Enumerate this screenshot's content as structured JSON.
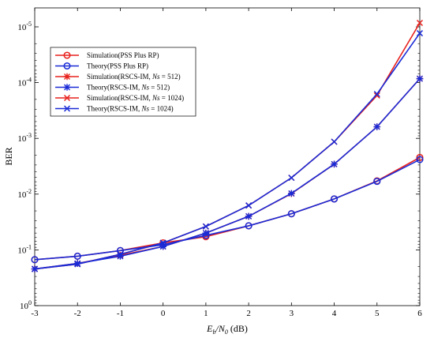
{
  "chart_data": {
    "type": "line",
    "xlabel": "E_b/N_0 (dB)",
    "xlabel_parts": {
      "main": "E",
      "sub1": "b",
      "slash": "/N",
      "sub2": "0",
      "unit": " (dB)"
    },
    "ylabel": "BER",
    "x": [
      -3,
      -2,
      -1,
      0,
      1,
      2,
      3,
      4,
      5,
      6
    ],
    "xlim": [
      -3,
      6
    ],
    "yscale": "log-inverted",
    "y_tick_exponents": [
      0,
      -1,
      -2,
      -3,
      -4,
      -5
    ],
    "y_tick_base": "10",
    "grid": false,
    "legend_placement": "top-left",
    "series": [
      {
        "name": "Simulation(PSS Plus RP)",
        "name_parts": [
          "Simulation(PSS Plus RP)"
        ],
        "color": "#e8211d",
        "marker": "circle",
        "values": [
          0.15,
          0.13,
          0.103,
          0.075,
          0.058,
          0.037,
          0.0225,
          0.0122,
          0.0058,
          0.0022
        ]
      },
      {
        "name": "Theory(PSS Plus RP)",
        "name_parts": [
          "Theory(PSS Plus RP)"
        ],
        "color": "#1a2bd6",
        "marker": "circle",
        "values": [
          0.15,
          0.13,
          0.103,
          0.081,
          0.055,
          0.037,
          0.0225,
          0.0122,
          0.0059,
          0.0024
        ]
      },
      {
        "name": "Simulation(RSCS-IM, Ns = 512)",
        "name_parts": [
          "Simulation(RSCS-IM, ",
          "Ns",
          " = 512)"
        ],
        "color": "#e8211d",
        "marker": "asterisk",
        "values": [
          0.22,
          0.175,
          0.125,
          0.087,
          0.05,
          0.025,
          0.0098,
          0.0029,
          0.00062,
          8.5e-05
        ]
      },
      {
        "name": "Theory(RSCS-IM, Ns = 512)",
        "name_parts": [
          "Theory(RSCS-IM, ",
          "Ns",
          " = 512)"
        ],
        "color": "#1a2bd6",
        "marker": "asterisk",
        "values": [
          0.22,
          0.175,
          0.13,
          0.087,
          0.05,
          0.025,
          0.0097,
          0.0029,
          0.00062,
          8.5e-05
        ]
      },
      {
        "name": "Simulation(RSCS-IM, Ns = 1024)",
        "name_parts": [
          "Simulation(RSCS-IM, ",
          "Ns",
          " = 1024)"
        ],
        "color": "#e8211d",
        "marker": "x",
        "values": [
          0.22,
          0.18,
          0.12,
          0.075,
          0.038,
          0.016,
          0.0051,
          0.00115,
          0.00017,
          8.5e-06
        ]
      },
      {
        "name": "Theory(RSCS-IM, Ns = 1024)",
        "name_parts": [
          "Theory(RSCS-IM, ",
          "Ns",
          " = 1024)"
        ],
        "color": "#1a2bd6",
        "marker": "x",
        "values": [
          0.22,
          0.18,
          0.12,
          0.075,
          0.038,
          0.016,
          0.0051,
          0.00115,
          0.00016,
          1.3e-05
        ]
      }
    ]
  }
}
